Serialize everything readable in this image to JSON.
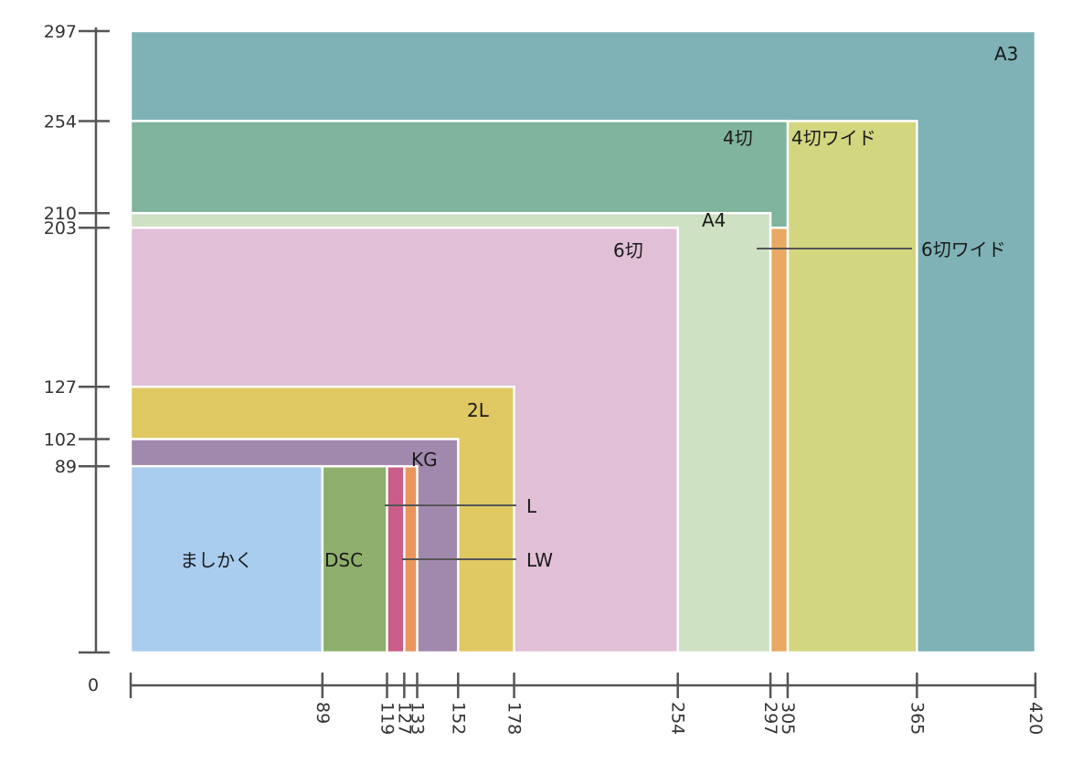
{
  "title": "",
  "origin_label": "0",
  "y_ticks": [
    "89",
    "102",
    "127",
    "203",
    "210",
    "254",
    "297"
  ],
  "x_ticks": [
    "89",
    "119",
    "127",
    "133",
    "152",
    "178",
    "254",
    "297",
    "305",
    "365",
    "420"
  ],
  "paper_sizes": [
    {
      "id": "a3",
      "label": "A3",
      "width": 420,
      "height": 297,
      "color": "#7fb2b6"
    },
    {
      "id": "4giri-wide",
      "label": "4切ワイド",
      "width": 365,
      "height": 254,
      "color": "#d2d67f"
    },
    {
      "id": "4giri",
      "label": "4切",
      "width": 305,
      "height": 254,
      "color": "#80b49c"
    },
    {
      "id": "6giri-wide",
      "label": "6切ワイド",
      "width": 305,
      "height": 203,
      "color": "#e9a964"
    },
    {
      "id": "a4",
      "label": "A4",
      "width": 297,
      "height": 210,
      "color": "#cfe1c3"
    },
    {
      "id": "6giri",
      "label": "6切",
      "width": 254,
      "height": 203,
      "color": "#e1bfd6"
    },
    {
      "id": "2l",
      "label": "2L",
      "width": 178,
      "height": 127,
      "color": "#e0c863"
    },
    {
      "id": "kg",
      "label": "KG",
      "width": 152,
      "height": 102,
      "color": "#a189ae"
    },
    {
      "id": "lw",
      "label": "LW",
      "width": 133,
      "height": 89,
      "color": "#e9965d"
    },
    {
      "id": "l",
      "label": "L",
      "width": 127,
      "height": 89,
      "color": "#cb5d89"
    },
    {
      "id": "dsc",
      "label": "DSC",
      "width": 119,
      "height": 89,
      "color": "#8fb06d"
    },
    {
      "id": "mashikaku",
      "label": "ましかく",
      "width": 89,
      "height": 89,
      "color": "#a9cdee"
    }
  ]
}
